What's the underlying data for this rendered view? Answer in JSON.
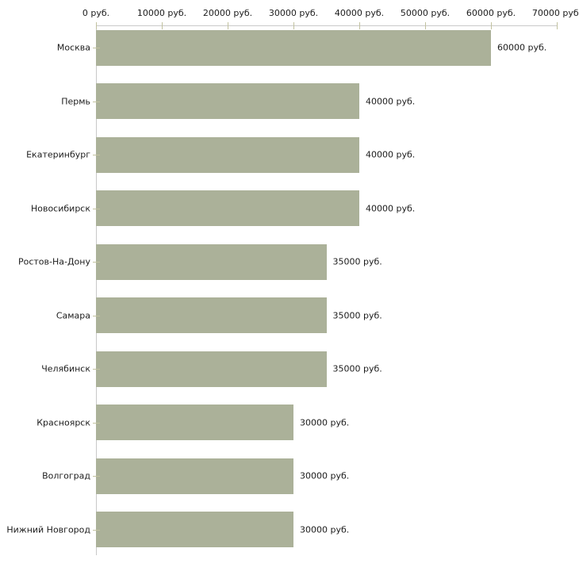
{
  "chart_data": {
    "type": "bar",
    "orientation": "horizontal",
    "title": "",
    "xlabel": "",
    "ylabel": "",
    "categories": [
      "Москва",
      "Пермь",
      "Екатеринбург",
      "Новосибирск",
      "Ростов-На-Дону",
      "Самара",
      "Челябинск",
      "Красноярск",
      "Волгоград",
      "Нижний Новгород"
    ],
    "values": [
      60000,
      40000,
      40000,
      40000,
      35000,
      35000,
      35000,
      30000,
      30000,
      30000
    ],
    "value_labels": [
      "60000 руб.",
      "40000 руб.",
      "40000 руб.",
      "40000 руб.",
      "35000 руб.",
      "35000 руб.",
      "35000 руб.",
      "30000 руб.",
      "30000 руб.",
      "30000 руб."
    ],
    "x_axis": {
      "position": "top",
      "min": 0,
      "max": 70000,
      "tick_values": [
        0,
        10000,
        20000,
        30000,
        40000,
        50000,
        60000,
        70000
      ],
      "tick_labels": [
        "0 руб.",
        "10000 руб.",
        "20000 руб.",
        "30000 руб.",
        "40000 руб.",
        "50000 руб.",
        "60000 руб.",
        "70000 руб."
      ]
    },
    "grid": false,
    "legend": false,
    "colors": {
      "bar": "#abb199",
      "axis_line": "#c9c9c9",
      "tick_mark": "#c2c2a0",
      "text": "#1c1c1c",
      "background": "#ffffff"
    }
  }
}
